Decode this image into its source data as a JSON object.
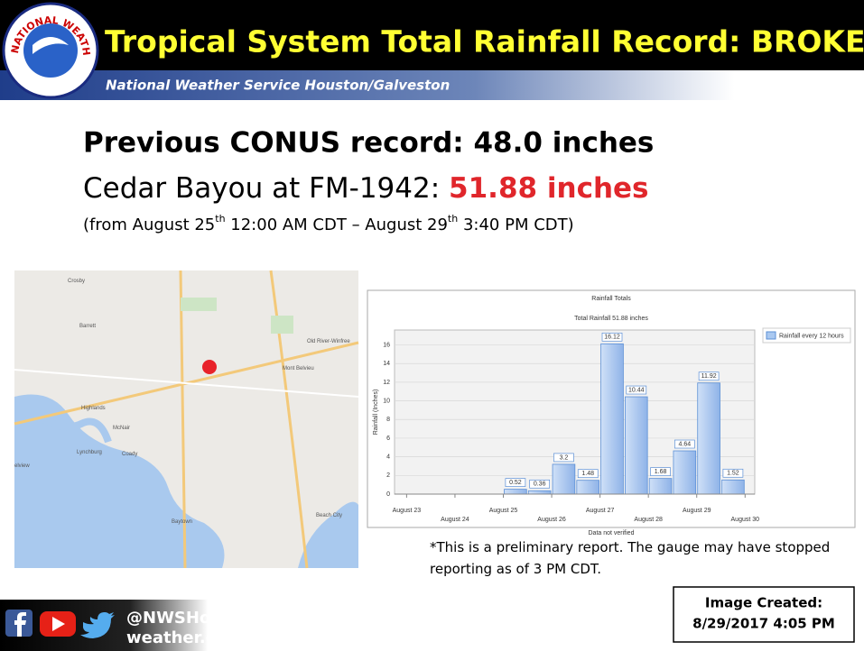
{
  "header": {
    "logo_text": "NATIONAL WEATHER SERVICE",
    "title": "Tropical System Total Rainfall Record: BROKEN",
    "subtitle": "National Weather Service Houston/Galveston"
  },
  "record": {
    "previous": "Previous CONUS record: 48.0 inches",
    "current_label": "Cedar Bayou at FM-1942:",
    "current_value": "51.88 inches",
    "period": [
      "(from August 25",
      "th",
      " 12:00 AM CDT – August 29",
      "th",
      " 3:40 PM CDT)"
    ]
  },
  "map": {
    "labels": [
      "Crosby",
      "Barrett",
      "Highlands",
      "McNair",
      "Lynchburg",
      "Coady",
      "Baytown",
      "Mont Belvieu",
      "Old River-Winfree",
      "Beach City",
      "elview"
    ]
  },
  "chart_data": {
    "type": "histogram",
    "title": "Rainfall Totals",
    "subtitle": "Total Rainfall 51.88 inches",
    "y_label": "Rainfall (Inches)",
    "x_note": "Data not verified",
    "bins": [
      25,
      25.5,
      26,
      26.5,
      27,
      27.5,
      28,
      28.5,
      29,
      29.5,
      30
    ],
    "series": [
      {
        "name": "Rainfall every 12 hours",
        "color": "#a9c8f0",
        "values": [
          0.52,
          0.36,
          3.2,
          1.48,
          16.12,
          10.44,
          1.68,
          4.64,
          11.92,
          1.52
        ]
      }
    ],
    "xlim": [
      22.75,
      30.2
    ],
    "xticks": [
      {
        "value": 23,
        "label": "August 23"
      },
      {
        "value": 24,
        "label": "August 24"
      },
      {
        "value": 25,
        "label": "August 25"
      },
      {
        "value": 26,
        "label": "August 26"
      },
      {
        "value": 27,
        "label": "August 27"
      },
      {
        "value": 28,
        "label": "August 28"
      },
      {
        "value": 29,
        "label": "August 29"
      },
      {
        "value": 30,
        "label": "August 30"
      }
    ],
    "ylim": [
      0,
      17.6
    ],
    "yticks": [
      0,
      2,
      4,
      6,
      8,
      10,
      12,
      14,
      16
    ],
    "grid": true,
    "legend": "right"
  },
  "note": "*This is a preliminary report. The gauge may have stopped reporting as of 3 PM CDT.",
  "footer": {
    "handle": "@NWSHouston",
    "site": "weather.gov/houston",
    "created_label": "Image Created:",
    "created": "8/29/2017 4:05 PM"
  }
}
